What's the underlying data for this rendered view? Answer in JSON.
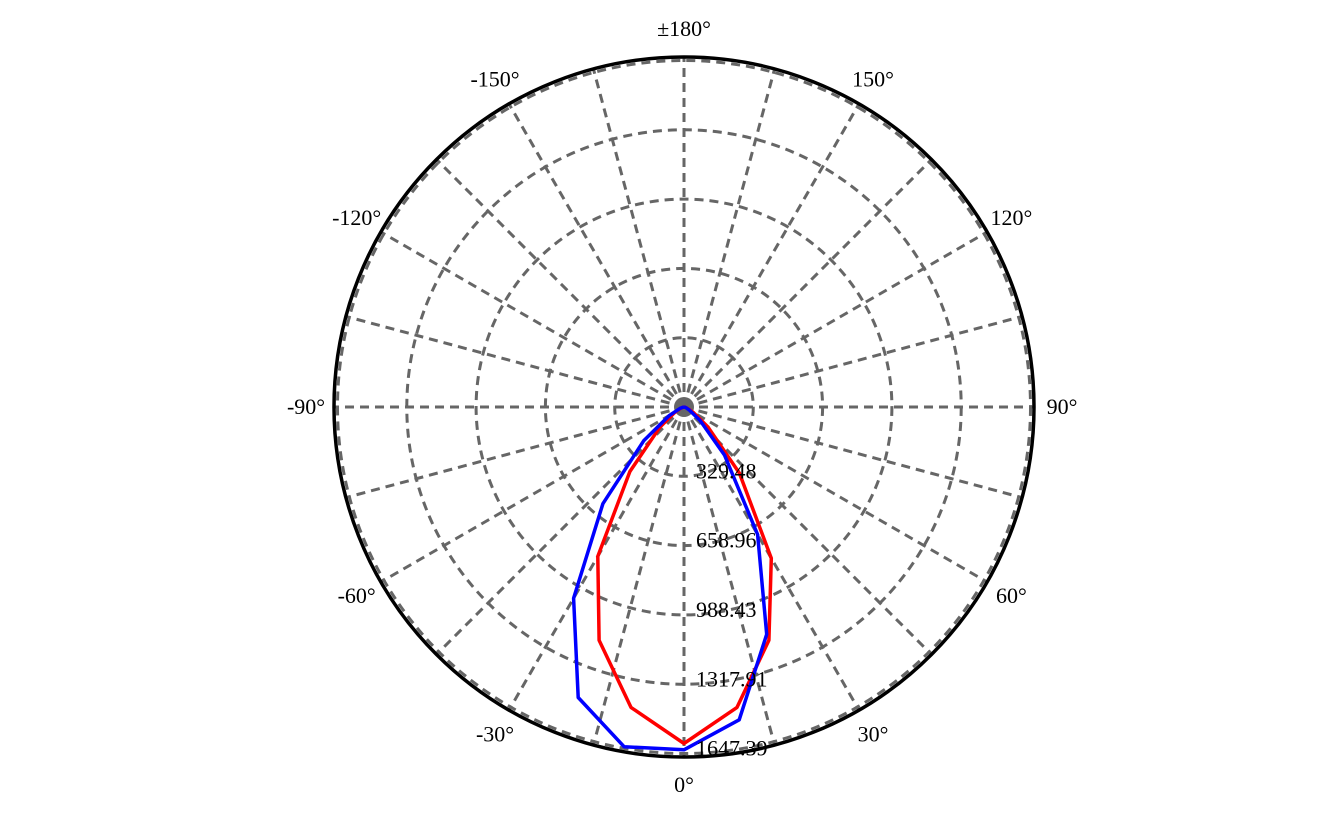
{
  "chart_data": {
    "type": "polar",
    "theta": [
      -90,
      -80,
      -70,
      -60,
      -50,
      -40,
      -30,
      -20,
      -10,
      0,
      10,
      20,
      30,
      40,
      50,
      60,
      70,
      80,
      90
    ],
    "series": [
      {
        "color": "#ff0000",
        "values": [
          0,
          5,
          15,
          50,
          150,
          400,
          820,
          1180,
          1450,
          1600,
          1450,
          1180,
          830,
          410,
          150,
          50,
          15,
          5,
          0
        ]
      },
      {
        "color": "#0000ff",
        "values": [
          0,
          5,
          20,
          80,
          250,
          600,
          1050,
          1470,
          1640,
          1630,
          1510,
          1150,
          700,
          300,
          100,
          30,
          10,
          3,
          0
        ]
      }
    ],
    "ylim": [
      0,
      1664
    ],
    "yticks": [
      329.48,
      658.96,
      988.43,
      1317.91,
      1647.39
    ],
    "xticks": [
      {
        "value": 0,
        "label": "0°"
      },
      {
        "value": 30,
        "label": "30°"
      },
      {
        "value": 60,
        "label": "60°"
      },
      {
        "value": 90,
        "label": "90°"
      },
      {
        "value": 120,
        "label": "120°"
      },
      {
        "value": 150,
        "label": "150°"
      },
      {
        "value": 180,
        "label": "±180°"
      },
      {
        "value": -150,
        "label": "-150°"
      },
      {
        "value": -120,
        "label": "-120°"
      },
      {
        "value": -90,
        "label": "-90°"
      },
      {
        "value": -60,
        "label": "-60°"
      },
      {
        "value": -30,
        "label": "-30°"
      }
    ],
    "theta_grid_step": 15,
    "grid": true
  }
}
